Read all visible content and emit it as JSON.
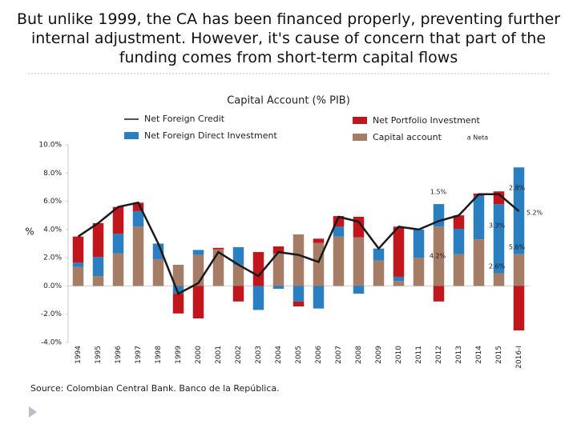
{
  "title": "But unlike 1999, the CA has been financed properly, preventing further internal adjustment. However, it's cause of concern that part of the funding comes from short-term capital flows",
  "chart_data": {
    "type": "stacked-bar-line",
    "title": "Capital Account (% PIB)",
    "y_label": "%",
    "categories": [
      "1994",
      "1995",
      "1996",
      "1997",
      "1998",
      "1999",
      "2000",
      "2001",
      "2002",
      "2003",
      "2004",
      "2005",
      "2006",
      "2007",
      "2008",
      "2009",
      "2010",
      "2011",
      "2012",
      "2013",
      "2014",
      "2015",
      "2016-I"
    ],
    "series": [
      {
        "name": "Capital account",
        "color": "#a57c66",
        "kind": "bar",
        "values": [
          1.35,
          0.7,
          2.3,
          4.2,
          1.9,
          1.5,
          2.2,
          2.6,
          1.5,
          0,
          2.3,
          3.65,
          3.05,
          3.5,
          3.45,
          1.8,
          0.35,
          2.0,
          4.2,
          2.25,
          3.3,
          0.9,
          2.25
        ]
      },
      {
        "name": "Net Foreign Direct Investment",
        "color": "#2a7fc0",
        "kind": "bar",
        "values": [
          0.3,
          1.35,
          1.4,
          1.1,
          1.1,
          -0.55,
          0.35,
          0,
          1.25,
          -1.7,
          -0.2,
          -1.1,
          -1.6,
          0.7,
          -0.55,
          0.85,
          0.3,
          2.0,
          1.6,
          1.8,
          3.1,
          4.9,
          6.15
        ]
      },
      {
        "name": "Net Portfolio Investment",
        "color": "#c0161c",
        "kind": "bar",
        "values": [
          1.85,
          2.4,
          1.9,
          0.6,
          0,
          -1.4,
          -2.3,
          0.1,
          -1.1,
          2.4,
          0.5,
          -0.35,
          0.3,
          0.75,
          1.45,
          0,
          3.55,
          0,
          -1.1,
          0.95,
          0.15,
          0.9,
          -3.15
        ]
      },
      {
        "name": "Net Foreign Credit",
        "color": "#1a1a1a",
        "kind": "line",
        "values": [
          3.5,
          4.45,
          5.6,
          5.9,
          3.0,
          -0.55,
          0.2,
          2.4,
          1.5,
          0.7,
          2.4,
          2.2,
          1.7,
          4.9,
          4.55,
          2.65,
          4.2,
          4.0,
          4.6,
          5.0,
          6.5,
          6.5,
          5.3
        ]
      }
    ],
    "ylim": [
      -4,
      10
    ],
    "yticks": [
      {
        "value": -4,
        "label": "-4.0%"
      },
      {
        "value": -2,
        "label": "-2.0%"
      },
      {
        "value": 0,
        "label": "0.0%"
      },
      {
        "value": 2,
        "label": "2.0%"
      },
      {
        "value": 4,
        "label": "4.0%"
      },
      {
        "value": 6,
        "label": "6.0%"
      },
      {
        "value": 8,
        "label": "8.0%"
      },
      {
        "value": 10,
        "label": "10.0%"
      }
    ],
    "annotations": [
      "2.8%",
      "1.5%",
      "5.2%",
      "3.3%",
      "5.6%",
      "4.2%",
      "2.6%",
      "a Neta"
    ],
    "source": "Source: Colombian Central Bank. Banco de la República."
  }
}
